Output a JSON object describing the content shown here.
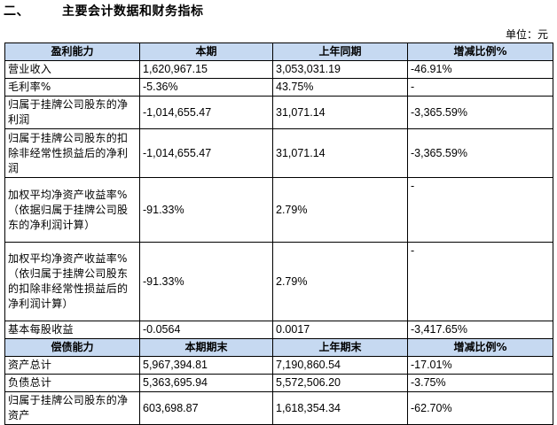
{
  "heading": {
    "num": "二、",
    "title": "主要会计数据和财务指标"
  },
  "unit": "单位：元",
  "profit_header": [
    "盈利能力",
    "本期",
    "上年同期",
    "增减比例%"
  ],
  "profit_rows": [
    {
      "label": "营业收入",
      "cur": "1,620,967.15",
      "prev": "3,053,031.19",
      "chg": "-46.91%"
    },
    {
      "label": "毛利率%",
      "cur": "-5.36%",
      "prev": "43.75%",
      "chg": "-"
    },
    {
      "label": "归属于挂牌公司股东的净利润",
      "cur": "-1,014,655.47",
      "prev": "31,071.14",
      "chg": "-3,365.59%"
    },
    {
      "label": "归属于挂牌公司股东的扣除非经常性损益后的净利润",
      "cur": "-1,014,655.47",
      "prev": "31,071.14",
      "chg": "-3,365.59%"
    },
    {
      "label": "加权平均净资产收益率%（依据归属于挂牌公司股东的净利润计算）",
      "cur": "-91.33%",
      "prev": "2.79%",
      "chg": "-"
    },
    {
      "label": "加权平均净资产收益率%（依归属于挂牌公司股东的扣除非经常性损益后的净利润计算）",
      "cur": "-91.33%",
      "prev": "2.79%",
      "chg": "-"
    },
    {
      "label": "基本每股收益",
      "cur": "-0.0564",
      "prev": "0.0017",
      "chg": "-3,417.65%"
    }
  ],
  "debt_header": [
    "偿债能力",
    "本期期末",
    "上年期末",
    "增减比例%"
  ],
  "debt_rows": [
    {
      "label": "资产总计",
      "cur": "5,967,394.81",
      "prev": "7,190,860.54",
      "chg": "-17.01%"
    },
    {
      "label": "负债总计",
      "cur": "5,363,695.94",
      "prev": "5,572,506.20",
      "chg": "-3.75%"
    },
    {
      "label": "归属于挂牌公司股东的净资产",
      "cur": "603,698.87",
      "prev": "1,618,354.34",
      "chg": "-62.70%"
    }
  ]
}
